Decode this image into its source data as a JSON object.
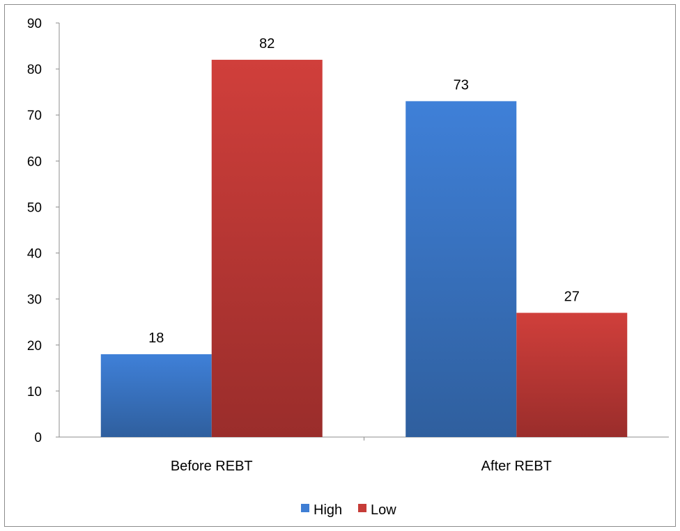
{
  "chart_data": {
    "type": "bar",
    "title": "",
    "xlabel": "",
    "ylabel": "",
    "categories": [
      "Before REBT",
      "After REBT"
    ],
    "series": [
      {
        "name": "High",
        "values": [
          18,
          73
        ],
        "color": "#3f7ed4"
      },
      {
        "name": "Low",
        "values": [
          82,
          27
        ],
        "color": "#c63c38"
      }
    ],
    "ylim": [
      0,
      90
    ],
    "yticks": [
      0,
      10,
      20,
      30,
      40,
      50,
      60,
      70,
      80,
      90
    ],
    "data_labels": true,
    "grid": false,
    "legend_position": "bottom"
  }
}
